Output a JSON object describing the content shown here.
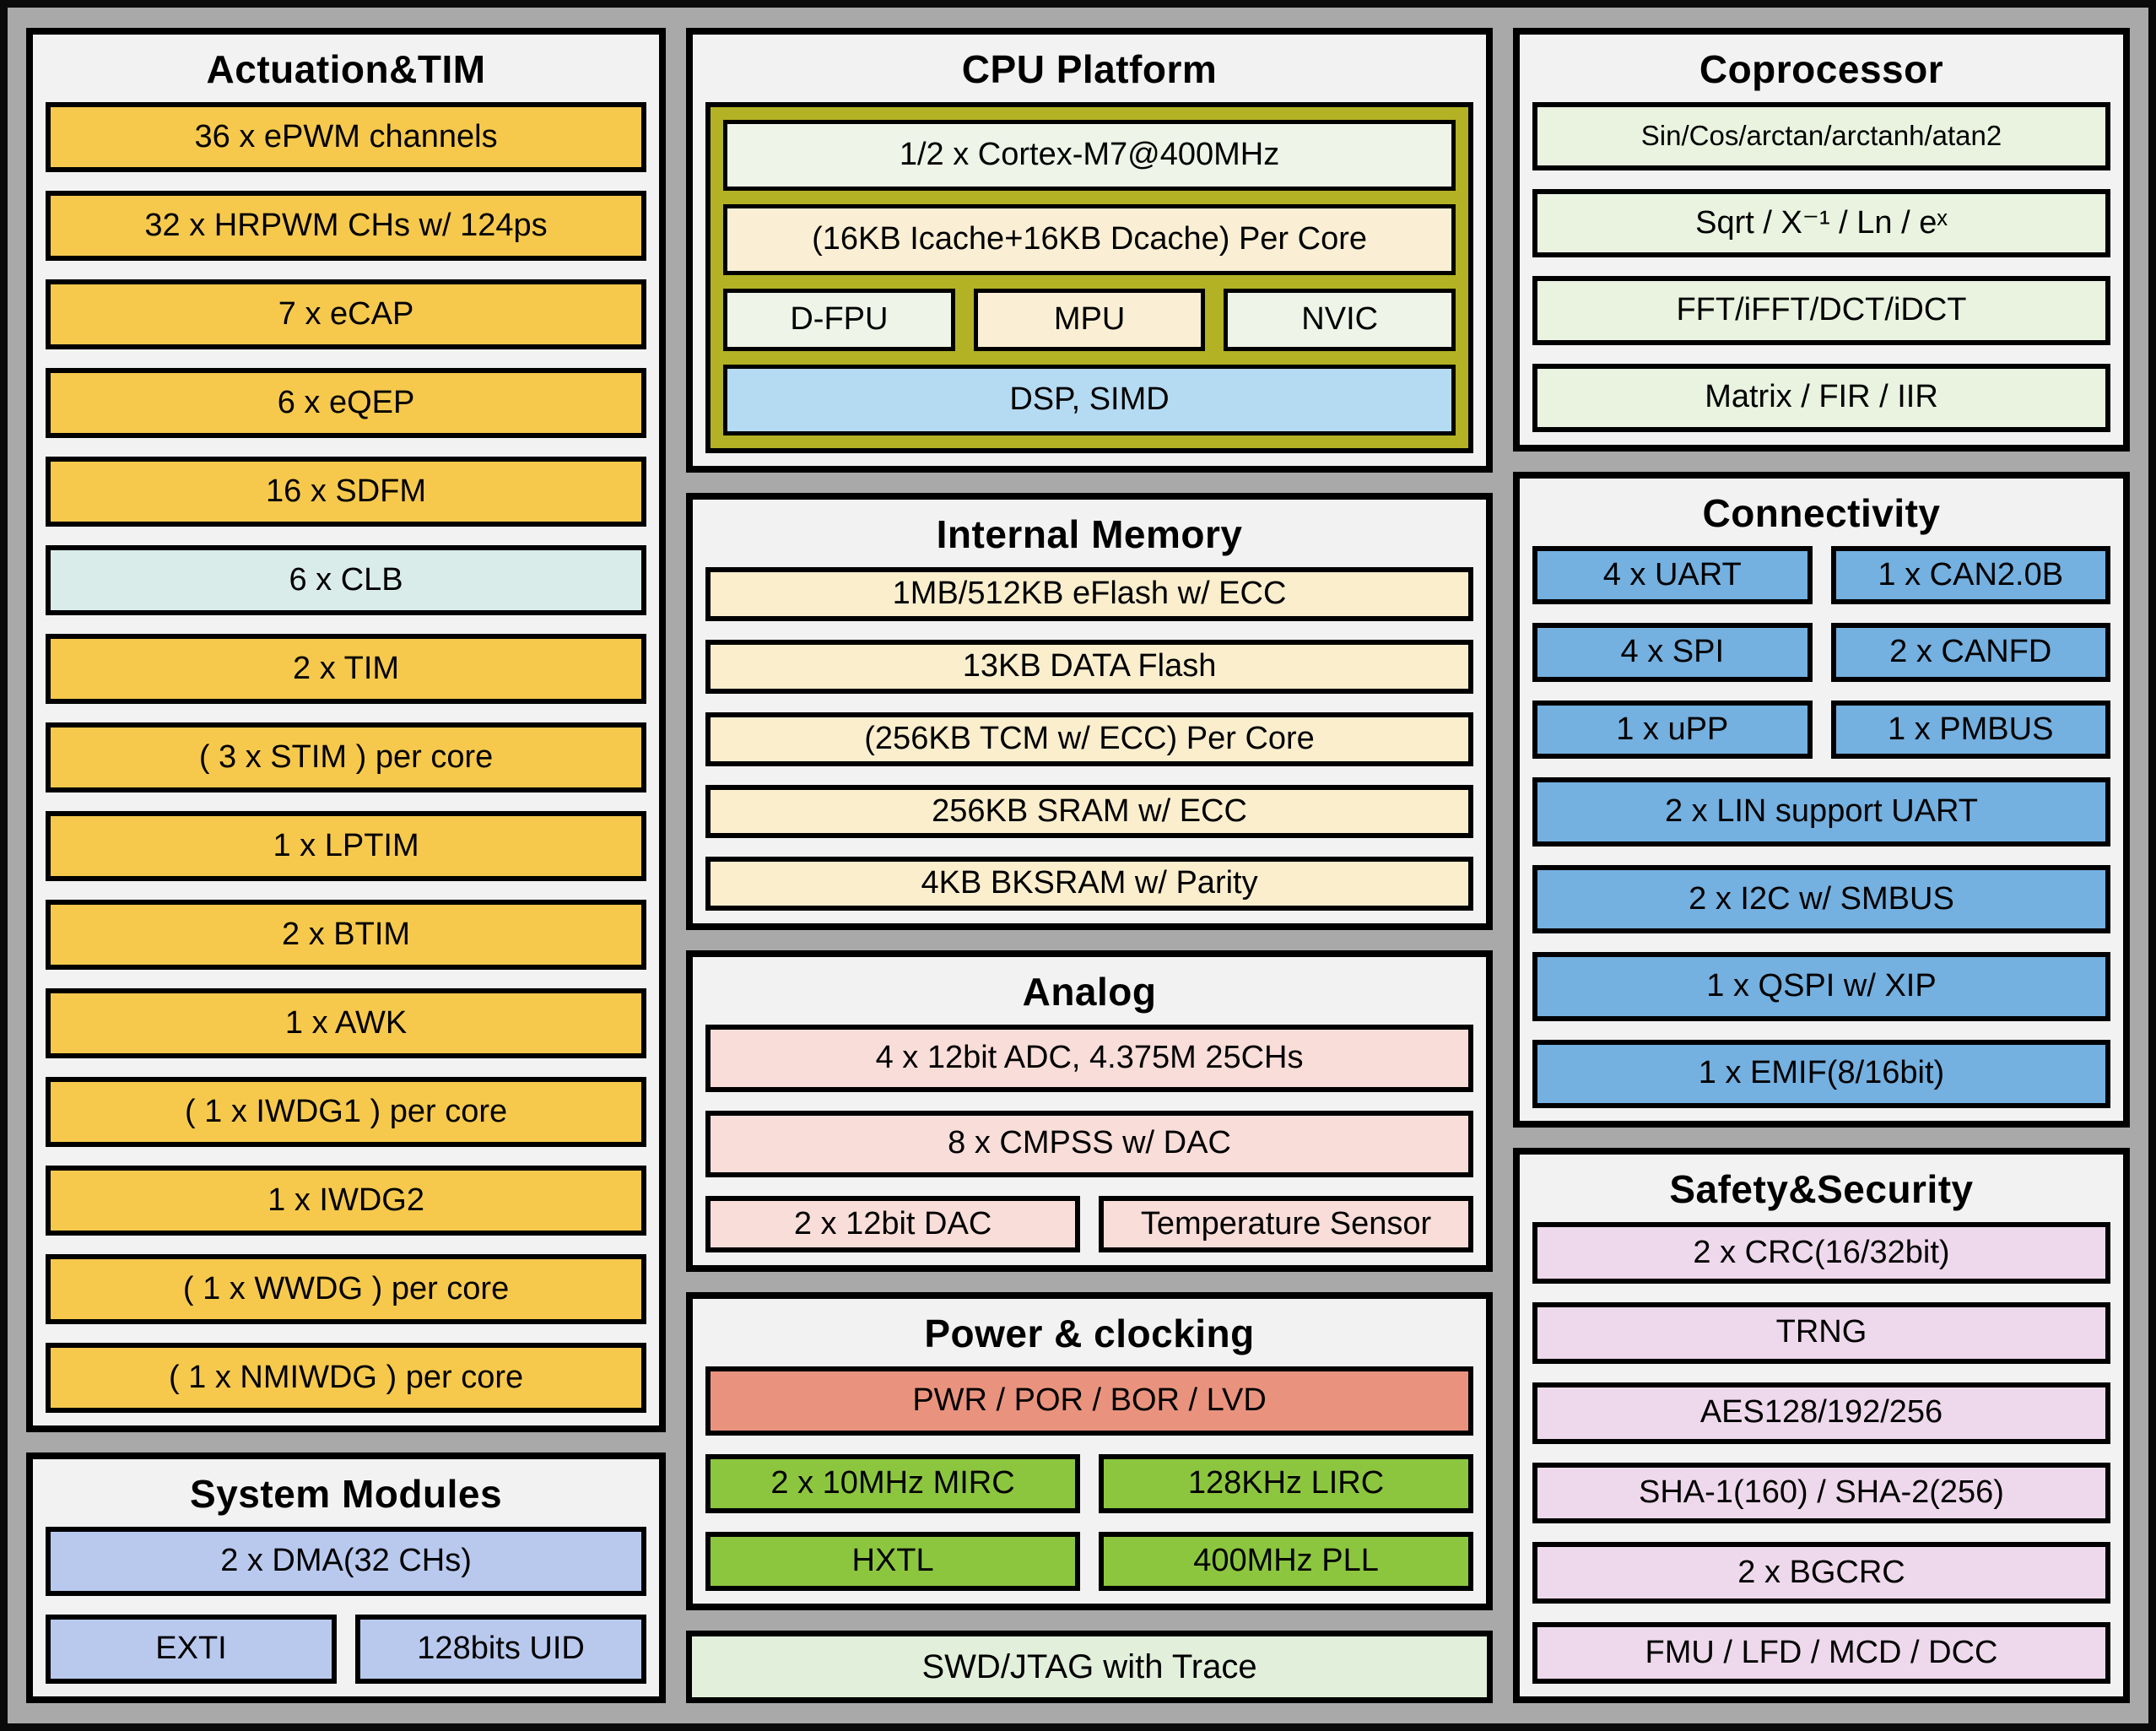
{
  "panels": {
    "actuation": {
      "title": "Actuation&TIM",
      "items": [
        "36 x ePWM channels",
        "32 x HRPWM CHs w/ 124ps",
        "7 x eCAP",
        "6 x eQEP",
        "16 x SDFM",
        "6 x CLB",
        "2 x TIM",
        "( 3 x STIM ) per core",
        "1 x LPTIM",
        "2 x BTIM",
        "1 x AWK",
        "( 1 x IWDG1 ) per core",
        "1 x IWDG2",
        "( 1 x WWDG ) per core",
        "( 1 x NMIWDG ) per core"
      ]
    },
    "system_modules": {
      "title": "System Modules",
      "dma": "2 x DMA(32 CHs)",
      "exti": "EXTI",
      "uid": "128bits UID"
    },
    "cpu": {
      "title": "CPU Platform",
      "cortex": "1/2 x Cortex-M7@400MHz",
      "cache": "(16KB Icache+16KB Dcache) Per Core",
      "dfpu": "D-FPU",
      "mpu": "MPU",
      "nvic": "NVIC",
      "dsp": "DSP, SIMD"
    },
    "memory": {
      "title": "Internal Memory",
      "items": [
        "1MB/512KB eFlash w/ ECC",
        "13KB DATA Flash",
        "(256KB TCM w/ ECC) Per Core",
        "256KB SRAM w/ ECC",
        "4KB BKSRAM w/ Parity"
      ]
    },
    "analog": {
      "title": "Analog",
      "adc": "4 x 12bit ADC, 4.375M 25CHs",
      "cmpss": "8 x CMPSS w/ DAC",
      "dac": "2 x 12bit DAC",
      "temp": "Temperature Sensor"
    },
    "power": {
      "title": "Power & clocking",
      "pwr": "PWR / POR / BOR / LVD",
      "mirc": "2 x 10MHz MIRC",
      "lirc": "128KHz LIRC",
      "hxtl": "HXTL",
      "pll": "400MHz PLL"
    },
    "debug": {
      "label": "SWD/JTAG with Trace"
    },
    "coprocessor": {
      "title": "Coprocessor",
      "items": [
        "Sin/Cos/arctan/arctanh/atan2",
        "Sqrt / X⁻¹ / Ln / eˣ",
        "FFT/iFFT/DCT/iDCT",
        "Matrix / FIR / IIR"
      ]
    },
    "connectivity": {
      "title": "Connectivity",
      "pairs": [
        [
          "4 x UART",
          "1 x CAN2.0B"
        ],
        [
          "4 x SPI",
          "2 x CANFD"
        ],
        [
          "1 x uPP",
          "1 x PMBUS"
        ]
      ],
      "full": [
        "2 x LIN support UART",
        "2 x I2C w/ SMBUS",
        "1 x QSPI w/ XIP",
        "1 x EMIF(8/16bit)"
      ]
    },
    "safety": {
      "title": "Safety&Security",
      "items": [
        "2 x CRC(16/32bit)",
        "TRNG",
        "AES128/192/256",
        "SHA-1(160) / SHA-2(256)",
        "2 x BGCRC",
        "FMU / LFD / MCD / DCC"
      ]
    }
  },
  "colors": {
    "timer_yellow": "#f6c94d",
    "clb_cyan": "#d9ecea",
    "system_periwinkle": "#b9c9ee",
    "cpu_olive": "#b3b224",
    "cpu_palegreen": "#eef4e8",
    "cache_cream": "#faefd4",
    "dsp_lightblue": "#b5dbf2",
    "memory_cream": "#faeecd",
    "analog_pink": "#f8ddd8",
    "pwr_salmon": "#e9937e",
    "clock_green": "#8cc63f",
    "coprocessor_palegreen": "#e9f3df",
    "connectivity_blue": "#74b0e0",
    "safety_violet": "#eed9ec",
    "swd_palegreen": "#e2efda",
    "panel_bg": "#f2f2f2",
    "outer_gray": "#a9a9a9"
  }
}
